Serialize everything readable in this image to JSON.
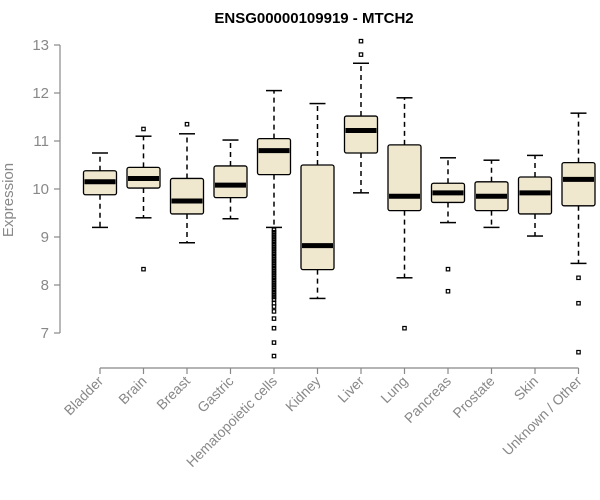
{
  "chart_data": {
    "type": "boxplot",
    "title": "ENSG00000109919 - MTCH2",
    "xlabel": "",
    "ylabel": "Expression",
    "ylim": [
      6.3,
      13.1
    ],
    "yticks": [
      7,
      8,
      9,
      10,
      11,
      12,
      13
    ],
    "categories": [
      "Bladder",
      "Brain",
      "Breast",
      "Gastric",
      "Hematopoietic cells",
      "Kidney",
      "Liver",
      "Lung",
      "Pancreas",
      "Prostate",
      "Skin",
      "Unknown / Other"
    ],
    "boxes": [
      {
        "name": "Bladder",
        "whisker_low": 9.2,
        "q1": 9.88,
        "median": 10.15,
        "q3": 10.38,
        "whisker_high": 10.75,
        "outliers": []
      },
      {
        "name": "Brain",
        "whisker_low": 9.4,
        "q1": 10.02,
        "median": 10.22,
        "q3": 10.45,
        "whisker_high": 11.1,
        "outliers": [
          11.25,
          8.33
        ]
      },
      {
        "name": "Breast",
        "whisker_low": 8.88,
        "q1": 9.48,
        "median": 9.75,
        "q3": 10.22,
        "whisker_high": 11.15,
        "outliers": [
          11.35
        ]
      },
      {
        "name": "Gastric",
        "whisker_low": 9.38,
        "q1": 9.82,
        "median": 10.08,
        "q3": 10.48,
        "whisker_high": 11.02,
        "outliers": []
      },
      {
        "name": "Hematopoietic cells",
        "whisker_low": 9.2,
        "q1": 10.3,
        "median": 10.8,
        "q3": 11.05,
        "whisker_high": 12.05,
        "outliers": [
          9.15,
          9.1,
          9.05,
          9.0,
          8.95,
          8.9,
          8.85,
          8.8,
          8.75,
          8.7,
          8.65,
          8.6,
          8.55,
          8.5,
          8.45,
          8.4,
          8.35,
          8.3,
          8.25,
          8.2,
          8.15,
          8.1,
          8.05,
          8.0,
          7.95,
          7.9,
          7.85,
          7.8,
          7.75,
          7.7,
          7.62,
          7.55,
          7.45,
          7.3,
          7.1,
          6.8,
          6.52
        ]
      },
      {
        "name": "Kidney",
        "whisker_low": 7.72,
        "q1": 8.32,
        "median": 8.82,
        "q3": 10.5,
        "whisker_high": 11.78,
        "outliers": []
      },
      {
        "name": "Liver",
        "whisker_low": 9.92,
        "q1": 10.75,
        "median": 11.22,
        "q3": 11.52,
        "whisker_high": 12.62,
        "outliers": [
          12.8,
          13.08
        ]
      },
      {
        "name": "Lung",
        "whisker_low": 8.15,
        "q1": 9.55,
        "median": 9.85,
        "q3": 10.92,
        "whisker_high": 11.9,
        "outliers": [
          7.1
        ]
      },
      {
        "name": "Pancreas",
        "whisker_low": 9.3,
        "q1": 9.72,
        "median": 9.92,
        "q3": 10.12,
        "whisker_high": 10.65,
        "outliers": [
          8.33,
          7.87
        ]
      },
      {
        "name": "Prostate",
        "whisker_low": 9.2,
        "q1": 9.55,
        "median": 9.85,
        "q3": 10.15,
        "whisker_high": 10.6,
        "outliers": []
      },
      {
        "name": "Skin",
        "whisker_low": 9.02,
        "q1": 9.48,
        "median": 9.92,
        "q3": 10.25,
        "whisker_high": 10.7,
        "outliers": []
      },
      {
        "name": "Unknown / Other",
        "whisker_low": 8.45,
        "q1": 9.65,
        "median": 10.2,
        "q3": 10.55,
        "whisker_high": 11.58,
        "outliers": [
          8.15,
          7.62,
          6.6
        ]
      }
    ],
    "colors": {
      "box_fill": "#efe8cf",
      "box_stroke": "#000000",
      "axis": "#888888",
      "text": "#888888"
    }
  }
}
